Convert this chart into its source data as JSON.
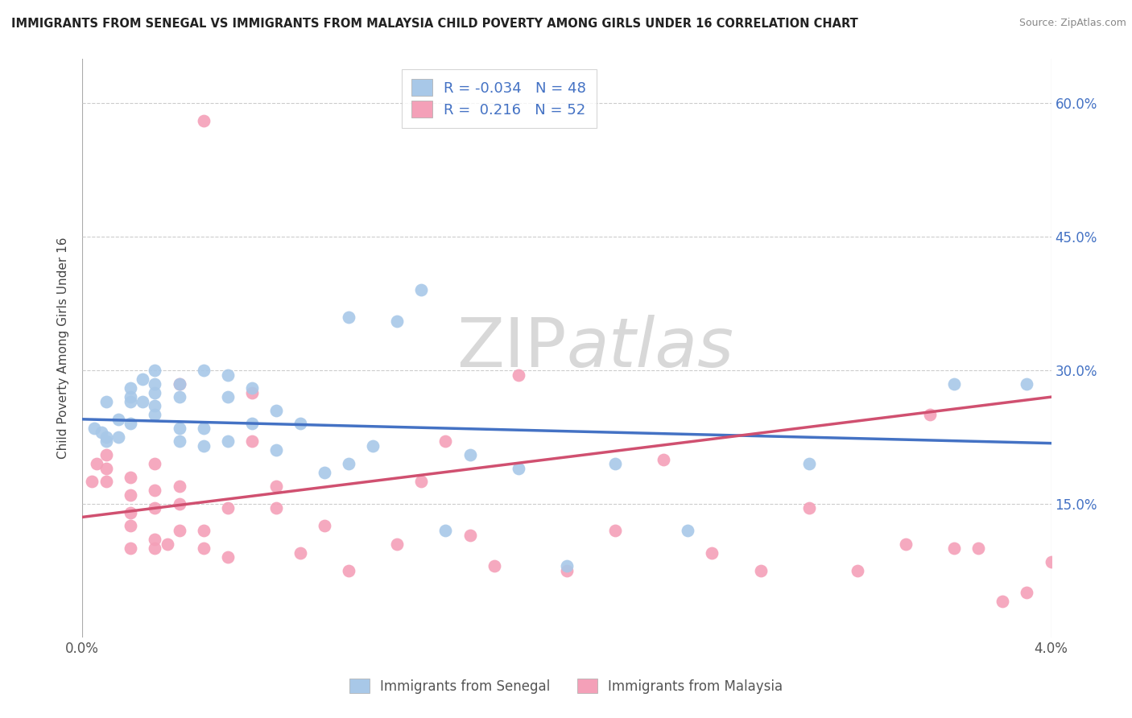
{
  "title": "IMMIGRANTS FROM SENEGAL VS IMMIGRANTS FROM MALAYSIA CHILD POVERTY AMONG GIRLS UNDER 16 CORRELATION CHART",
  "source": "Source: ZipAtlas.com",
  "ylabel": "Child Poverty Among Girls Under 16",
  "xlim": [
    0.0,
    0.04
  ],
  "ylim": [
    0.0,
    0.65
  ],
  "yticks": [
    0.15,
    0.3,
    0.45,
    0.6
  ],
  "ytick_labels": [
    "15.0%",
    "30.0%",
    "45.0%",
    "60.0%"
  ],
  "xticks": [
    0.0,
    0.04
  ],
  "xtick_labels": [
    "0.0%",
    "4.0%"
  ],
  "right_ytick_labels": [
    "15.0%",
    "30.0%",
    "45.0%",
    "60.0%"
  ],
  "senegal_R": "-0.034",
  "senegal_N": "48",
  "malaysia_R": "0.216",
  "malaysia_N": "52",
  "senegal_color": "#a8c8e8",
  "malaysia_color": "#f4a0b8",
  "senegal_line_color": "#4472c4",
  "malaysia_line_color": "#d05070",
  "legend_text_color": "#4472c4",
  "background_color": "#ffffff",
  "grid_color": "#cccccc",
  "watermark_color": "#d8d8d8",
  "senegal_scatter_x": [
    0.0005,
    0.0008,
    0.001,
    0.001,
    0.001,
    0.0015,
    0.0015,
    0.002,
    0.002,
    0.002,
    0.002,
    0.0025,
    0.0025,
    0.003,
    0.003,
    0.003,
    0.003,
    0.003,
    0.004,
    0.004,
    0.004,
    0.004,
    0.005,
    0.005,
    0.005,
    0.006,
    0.006,
    0.006,
    0.007,
    0.007,
    0.008,
    0.008,
    0.009,
    0.01,
    0.011,
    0.011,
    0.012,
    0.013,
    0.014,
    0.015,
    0.016,
    0.018,
    0.02,
    0.022,
    0.025,
    0.03,
    0.036,
    0.039
  ],
  "senegal_scatter_y": [
    0.235,
    0.23,
    0.225,
    0.22,
    0.265,
    0.225,
    0.245,
    0.24,
    0.265,
    0.27,
    0.28,
    0.265,
    0.29,
    0.25,
    0.26,
    0.275,
    0.285,
    0.3,
    0.22,
    0.235,
    0.27,
    0.285,
    0.215,
    0.235,
    0.3,
    0.22,
    0.27,
    0.295,
    0.24,
    0.28,
    0.21,
    0.255,
    0.24,
    0.185,
    0.195,
    0.36,
    0.215,
    0.355,
    0.39,
    0.12,
    0.205,
    0.19,
    0.08,
    0.195,
    0.12,
    0.195,
    0.285,
    0.285
  ],
  "malaysia_scatter_x": [
    0.0004,
    0.0006,
    0.001,
    0.001,
    0.001,
    0.002,
    0.002,
    0.002,
    0.002,
    0.002,
    0.003,
    0.003,
    0.003,
    0.003,
    0.003,
    0.0035,
    0.004,
    0.004,
    0.004,
    0.004,
    0.005,
    0.005,
    0.005,
    0.006,
    0.006,
    0.007,
    0.007,
    0.008,
    0.008,
    0.009,
    0.01,
    0.011,
    0.013,
    0.014,
    0.015,
    0.016,
    0.017,
    0.018,
    0.02,
    0.022,
    0.024,
    0.026,
    0.028,
    0.03,
    0.032,
    0.034,
    0.035,
    0.036,
    0.037,
    0.038,
    0.039,
    0.04
  ],
  "malaysia_scatter_y": [
    0.175,
    0.195,
    0.175,
    0.19,
    0.205,
    0.1,
    0.125,
    0.14,
    0.16,
    0.18,
    0.1,
    0.11,
    0.145,
    0.165,
    0.195,
    0.105,
    0.12,
    0.15,
    0.17,
    0.285,
    0.1,
    0.12,
    0.58,
    0.09,
    0.145,
    0.22,
    0.275,
    0.145,
    0.17,
    0.095,
    0.125,
    0.075,
    0.105,
    0.175,
    0.22,
    0.115,
    0.08,
    0.295,
    0.075,
    0.12,
    0.2,
    0.095,
    0.075,
    0.145,
    0.075,
    0.105,
    0.25,
    0.1,
    0.1,
    0.04,
    0.05,
    0.085
  ],
  "senegal_line_x": [
    0.0,
    0.04
  ],
  "senegal_line_y": [
    0.245,
    0.218
  ],
  "malaysia_line_x": [
    0.0,
    0.04
  ],
  "malaysia_line_y": [
    0.135,
    0.27
  ]
}
